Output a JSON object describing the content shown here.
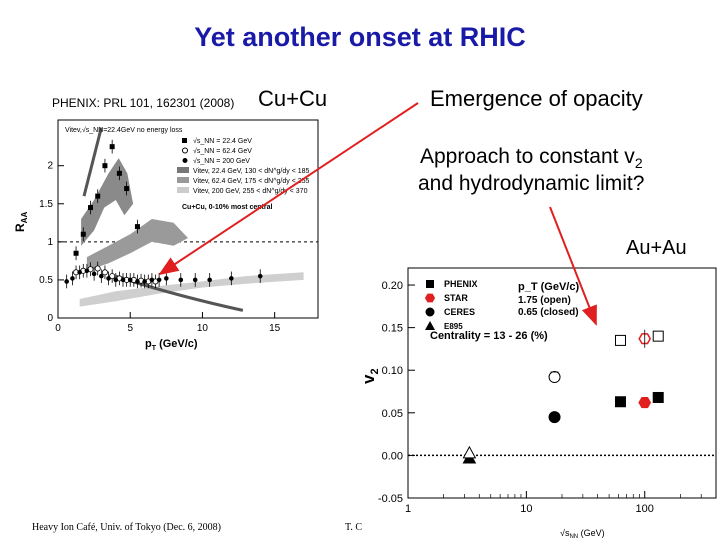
{
  "slide": {
    "title": "Yet another onset at RHIC",
    "citation": "PHENIX: PRL 101, 162301 (2008)",
    "cucu_label": "Cu+Cu",
    "emergence": "Emergence of opacity",
    "approach_line1": "Approach to constant v",
    "approach_sub": "2",
    "approach_line2": "and hydrodynamic limit?",
    "auau_label": "Au+Au",
    "footer_left": "Heavy Ion Café, Univ. of Tokyo (Dec. 6, 2008)",
    "footer_mid": "T. C",
    "arrow_color": "#e02020",
    "title_color": "#1a1aa8"
  },
  "chart_data": [
    {
      "type": "scatter",
      "xlabel": "p_T (GeV/c)",
      "ylabel": "R_AA",
      "xlim": [
        0,
        18
      ],
      "ylim": [
        0,
        2.6
      ],
      "xticks": [
        0,
        5,
        10,
        15
      ],
      "yticks": [
        0,
        0.5,
        1,
        1.5,
        2
      ],
      "legend": {
        "placement": "top-right",
        "header": "Vitev,√s_NN=22.4GeV no energy loss",
        "entries": [
          {
            "label": "√s_NN = 22.4 GeV",
            "marker": "filled-square"
          },
          {
            "label": "√s_NN = 62.4 GeV",
            "marker": "open-circle"
          },
          {
            "label": "√s_NN = 200 GeV",
            "marker": "filled-circle"
          },
          {
            "label": "Vitev, 22.4 GeV, 130 < dN^g/dy < 185",
            "marker": "band-dark"
          },
          {
            "label": "Vitev, 62.4 GeV, 175 < dN^g/dy < 255",
            "marker": "band-mid"
          },
          {
            "label": "Vitev, 200 GeV, 255 < dN^g/dy < 370",
            "marker": "band-light"
          }
        ]
      },
      "annotation": "Cu+Cu, 0-10% most central",
      "series": [
        {
          "name": "√s_NN = 22.4 GeV",
          "marker": "filled-square",
          "x": [
            1.25,
            1.75,
            2.25,
            2.75,
            3.25,
            3.75,
            4.25,
            4.75,
            5.5
          ],
          "y": [
            0.85,
            1.1,
            1.45,
            1.6,
            2.0,
            2.25,
            1.9,
            1.7,
            1.2
          ]
        },
        {
          "name": "√s_NN = 62.4 GeV",
          "marker": "open-circle",
          "x": [
            1.25,
            1.75,
            2.25,
            2.75,
            3.25,
            3.75,
            4.25,
            4.75,
            5.25,
            5.75,
            6.25,
            6.75
          ],
          "y": [
            0.6,
            0.62,
            0.64,
            0.65,
            0.6,
            0.55,
            0.52,
            0.5,
            0.5,
            0.49,
            0.48,
            0.48
          ]
        },
        {
          "name": "√s_NN = 200 GeV",
          "marker": "filled-circle",
          "x": [
            0.6,
            1.0,
            1.5,
            2.0,
            2.5,
            3.0,
            3.5,
            4.0,
            4.5,
            5.0,
            5.5,
            6.0,
            6.5,
            7.0,
            7.5,
            8.5,
            9.5,
            10.5,
            12.0,
            14.0
          ],
          "y": [
            0.48,
            0.52,
            0.6,
            0.62,
            0.58,
            0.55,
            0.52,
            0.5,
            0.5,
            0.5,
            0.48,
            0.48,
            0.5,
            0.5,
            0.52,
            0.5,
            0.5,
            0.5,
            0.52,
            0.55
          ]
        }
      ]
    },
    {
      "type": "scatter",
      "ylabel": "v₂",
      "xlabel": "√s_NN (GeV)",
      "xscale": "log",
      "xlim": [
        1,
        400
      ],
      "ylim": [
        -0.05,
        0.22
      ],
      "xticks": [
        1,
        10,
        100
      ],
      "yticks": [
        -0.05,
        0.0,
        0.05,
        0.1,
        0.15,
        0.2
      ],
      "legend": {
        "placement": "top-left",
        "entries": [
          {
            "label": "PHENIX",
            "marker": "filled-square"
          },
          {
            "label": "STAR",
            "marker": "red-hexagon"
          },
          {
            "label": "CERES",
            "marker": "filled-circle"
          },
          {
            "label": "E895",
            "marker": "filled-triangle"
          }
        ],
        "pt_header": "p_T (GeV/c)",
        "pt_open": "1.75 (open)",
        "pt_closed": "0.65 (closed)"
      },
      "annotation": "Centrality = 13 - 26 (%)",
      "series": [
        {
          "name": "PHENIX",
          "marker": "square",
          "points": [
            {
              "x": 62.4,
              "y": 0.063,
              "open": false
            },
            {
              "x": 130,
              "y": 0.068,
              "open": false
            },
            {
              "x": 62.4,
              "y": 0.135,
              "open": true
            },
            {
              "x": 130,
              "y": 0.14,
              "open": true
            }
          ]
        },
        {
          "name": "STAR",
          "marker": "red-hexagon",
          "points": [
            {
              "x": 100,
              "y": 0.062,
              "open": false
            },
            {
              "x": 100,
              "y": 0.137,
              "open": true
            }
          ]
        },
        {
          "name": "CERES",
          "marker": "circle",
          "points": [
            {
              "x": 17.3,
              "y": 0.045,
              "open": false
            },
            {
              "x": 17.3,
              "y": 0.092,
              "open": true
            }
          ]
        },
        {
          "name": "E895",
          "marker": "triangle",
          "points": [
            {
              "x": 3.3,
              "y": -0.003,
              "open": false
            },
            {
              "x": 3.3,
              "y": 0.003,
              "open": true
            }
          ]
        }
      ]
    }
  ]
}
